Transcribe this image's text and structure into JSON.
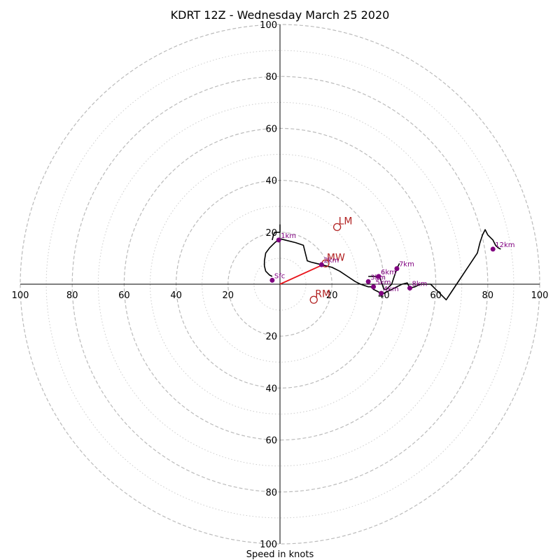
{
  "chart_data": {
    "type": "hodograph",
    "title": "KDRT 12Z - Wednesday March 25 2020",
    "xlabel": "Speed in knots",
    "axis_max": 100,
    "ring_major": [
      20,
      40,
      60,
      80,
      100
    ],
    "ring_minor": [
      10,
      30,
      50,
      70,
      90
    ],
    "x_tick_labels": [
      "100",
      "80",
      "60",
      "40",
      "20",
      "20",
      "40",
      "60",
      "80",
      "100"
    ],
    "y_tick_labels": [
      "100",
      "80",
      "60",
      "40",
      "20",
      "20",
      "40",
      "60",
      "80",
      "100"
    ],
    "x_ticks": [
      -100,
      -80,
      -60,
      -40,
      -20,
      20,
      40,
      60,
      80,
      100
    ],
    "y_ticks": [
      100,
      80,
      60,
      40,
      20,
      -20,
      -40,
      -60,
      -80,
      -100
    ],
    "colors": {
      "trace": "#000000",
      "height_marker": "#800080",
      "motion": "#b22222",
      "shear_vector": "#e8141b",
      "ring_major": "#bbbbbb",
      "ring_minor": "#cccccc"
    },
    "hodograph_trace": [
      [
        -3,
        3
      ],
      [
        -4,
        3.5
      ],
      [
        -5.5,
        5
      ],
      [
        -6,
        7
      ],
      [
        -6,
        9
      ],
      [
        -5.5,
        12
      ],
      [
        -4,
        14
      ],
      [
        -2,
        16
      ],
      [
        0,
        17.5
      ],
      [
        2,
        17
      ],
      [
        6,
        16
      ],
      [
        9,
        15
      ],
      [
        10.5,
        9
      ],
      [
        12,
        8.5
      ],
      [
        14,
        8
      ],
      [
        16,
        7.5
      ],
      [
        18,
        7
      ],
      [
        20,
        6.5
      ],
      [
        23,
        5
      ],
      [
        26,
        3
      ],
      [
        29,
        1
      ],
      [
        31,
        0
      ],
      [
        34,
        -1
      ],
      [
        35,
        -1
      ],
      [
        36,
        -2
      ],
      [
        37,
        -2.5
      ],
      [
        38,
        -3
      ],
      [
        39,
        -4
      ],
      [
        40,
        -3.5
      ],
      [
        41,
        -3
      ],
      [
        43,
        -2
      ],
      [
        45,
        -1
      ],
      [
        47,
        0
      ],
      [
        49,
        0.5
      ],
      [
        50,
        -1.5
      ],
      [
        52,
        -1
      ],
      [
        54,
        0
      ],
      [
        56,
        0
      ],
      [
        58,
        0
      ],
      [
        60,
        -2
      ],
      [
        62,
        -4
      ],
      [
        64,
        -6
      ],
      [
        66,
        -3
      ],
      [
        68,
        0
      ],
      [
        70,
        3
      ],
      [
        72,
        6
      ],
      [
        74,
        9
      ],
      [
        76,
        12
      ],
      [
        77,
        16
      ],
      [
        78,
        19
      ],
      [
        79,
        21
      ],
      [
        80,
        19
      ],
      [
        82,
        17
      ],
      [
        83,
        15
      ],
      [
        84,
        14
      ],
      [
        85,
        13.5
      ]
    ],
    "hodograph_trace_hook": [
      [
        34,
        3
      ],
      [
        37,
        3
      ],
      [
        38.5,
        2.5
      ],
      [
        40,
        -2
      ],
      [
        41,
        -2
      ],
      [
        43,
        0
      ],
      [
        44,
        3
      ],
      [
        45,
        6
      ],
      [
        46,
        8
      ]
    ],
    "hodograph_trace_top": [
      [
        -3,
        17
      ],
      [
        -2.5,
        19
      ],
      [
        -2,
        20
      ],
      [
        0,
        20
      ],
      [
        0,
        23
      ]
    ],
    "height_points": [
      {
        "label": "Sfc",
        "u": -3,
        "v": 1.5
      },
      {
        "label": "1km",
        "u": -0.5,
        "v": 17
      },
      {
        "label": "2km",
        "u": 16,
        "v": 7.5
      },
      {
        "label": "3km",
        "u": 34,
        "v": 1
      },
      {
        "label": "4km",
        "u": 39,
        "v": -3.5
      },
      {
        "label": "5km",
        "u": 36,
        "v": -1
      },
      {
        "label": "6km",
        "u": 38,
        "v": 3
      },
      {
        "label": "7km",
        "u": 45,
        "v": 6
      },
      {
        "label": "8km",
        "u": 50,
        "v": -1.5
      },
      {
        "label": "12km",
        "u": 82,
        "v": 13.5
      }
    ],
    "motion_markers": [
      {
        "label": "LM",
        "u": 22,
        "v": 22
      },
      {
        "label": "MW",
        "u": 17.5,
        "v": 8
      },
      {
        "label": "RM",
        "u": 13,
        "v": -6
      }
    ],
    "shear_vector": {
      "from": [
        0,
        0
      ],
      "to": [
        16.5,
        7.5
      ]
    }
  }
}
